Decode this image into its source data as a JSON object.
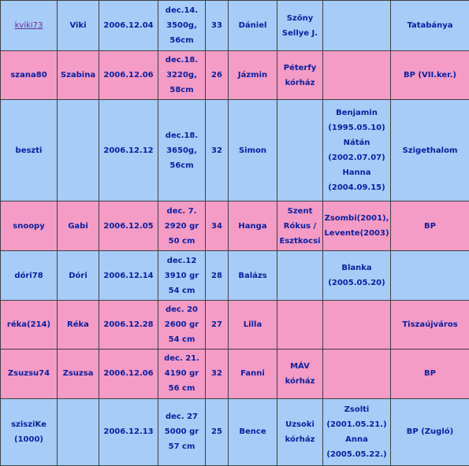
{
  "rows": [
    {
      "color": "blue",
      "user": "kviki73",
      "user_is_link": true,
      "name": "Viki",
      "date": "2006.12.04",
      "baby": [
        "dec.14.",
        "3500g,",
        "56cm"
      ],
      "age": "33",
      "child": "Dániel",
      "hospital": [
        "Szőny",
        "Sellye J."
      ],
      "siblings": [],
      "city": "Tatabánya"
    },
    {
      "color": "pink",
      "user": "szana80",
      "user_is_link": false,
      "name": "Szabina",
      "date": "2006.12.06",
      "baby": [
        "dec.18.",
        "3220g,",
        "58cm"
      ],
      "age": "26",
      "child": "Jázmin",
      "hospital": [
        "Péterfy",
        "kórház"
      ],
      "siblings": [],
      "city": "BP (VII.ker.)"
    },
    {
      "color": "blue",
      "user": "beszti",
      "user_is_link": false,
      "name": "",
      "date": "2006.12.12",
      "baby": [
        "dec.18.",
        "3650g,",
        "56cm"
      ],
      "age": "32",
      "child": "Simon",
      "hospital": [],
      "siblings": [
        "Benjamin",
        "(1995.05.10)",
        "Nátán",
        "(2002.07.07)",
        "Hanna",
        "(2004.09.15)"
      ],
      "city": "Szigethalom"
    },
    {
      "color": "pink",
      "user": "snoopy",
      "user_is_link": false,
      "name": "Gabi",
      "date": "2006.12.05",
      "baby": [
        "dec. 7.",
        "2920 gr",
        "50 cm"
      ],
      "age": "34",
      "child": "Hanga",
      "hospital": [
        "Szent",
        "Rókus /",
        "Esztkocsi"
      ],
      "siblings": [
        "Zsombi(2001),",
        "Levente(2003)"
      ],
      "city": "BP"
    },
    {
      "color": "blue",
      "user": "dóri78",
      "user_is_link": false,
      "name": "Dóri",
      "date": "2006.12.14",
      "baby": [
        "dec.12",
        "3910 gr",
        "54 cm"
      ],
      "age": "28",
      "child": "Balázs",
      "hospital": [],
      "siblings": [
        "Blanka",
        "(2005.05.20)"
      ],
      "city": ""
    },
    {
      "color": "pink",
      "user": "réka(214)",
      "user_is_link": false,
      "name": "Réka",
      "date": "2006.12.28",
      "baby": [
        "dec. 20",
        "2600 gr",
        "54 cm"
      ],
      "age": "27",
      "child": "Lilla",
      "hospital": [],
      "siblings": [],
      "city": "Tiszaújváros"
    },
    {
      "color": "pink",
      "user": "Zsuzsu74",
      "user_is_link": false,
      "name": "Zsuzsa",
      "date": "2006.12.06",
      "baby": [
        "dec. 21.",
        "4190 gr",
        "56 cm"
      ],
      "age": "32",
      "child": "Fanni",
      "hospital": [
        "MÁV",
        "kórház"
      ],
      "siblings": [],
      "city": "BP"
    },
    {
      "color": "blue",
      "user": "szisziKe (1000)",
      "user_is_link": false,
      "name": "",
      "date": "2006.12.13",
      "baby": [
        "dec. 27",
        "5000 gr",
        "57 cm"
      ],
      "age": "25",
      "child": "Bence",
      "hospital": [
        "Uzsoki",
        "kórház"
      ],
      "siblings": [
        "Zsolti",
        "(2001.05.21.)",
        "Anna",
        "(2005.05.22.)"
      ],
      "city": "BP (Zugló)"
    }
  ]
}
